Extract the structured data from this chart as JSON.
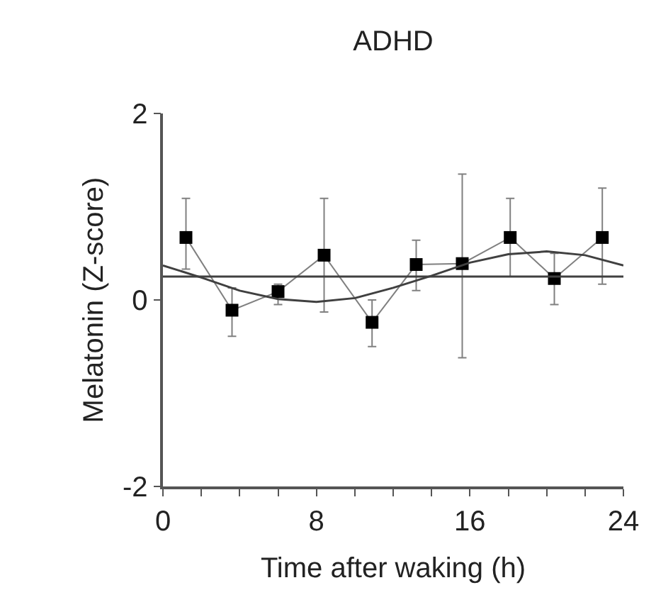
{
  "chart_data": {
    "type": "line",
    "title": "ADHD",
    "xlabel": "Time after waking (h)",
    "ylabel": "Melatonin (Z-score)",
    "xlim": [
      0,
      24
    ],
    "xticks": [
      0,
      {
        "value": 2,
        "label": null
      },
      {
        "value": 4,
        "label": null
      },
      {
        "value": 6,
        "label": null
      },
      8,
      {
        "value": 10,
        "label": null
      },
      {
        "value": 12,
        "label": null
      },
      {
        "value": 14,
        "label": null
      },
      16,
      {
        "value": 18,
        "label": null
      },
      {
        "value": 20,
        "label": null
      },
      {
        "value": 22,
        "label": null
      },
      24
    ],
    "ylim": [
      -2,
      2
    ],
    "yticks": [
      -2,
      0,
      2
    ],
    "series": [
      {
        "color": "#808080",
        "marker": "square",
        "colors": [
          "#000000",
          "#000000",
          "#000000",
          "#000000",
          "#000000",
          "#000000",
          "#000000",
          "#000000",
          "#000000",
          "#000000"
        ],
        "x": [
          1.2,
          3.6,
          6.0,
          8.4,
          10.9,
          13.2,
          15.6,
          18.1,
          20.4,
          22.9
        ],
        "values": [
          0.67,
          -0.11,
          0.09,
          0.48,
          -0.24,
          0.38,
          0.39,
          0.67,
          0.23,
          0.67
        ],
        "errors": [
          [
            0.33,
            1.09
          ],
          [
            -0.39,
            0.13
          ],
          [
            -0.05,
            0.17
          ],
          [
            -0.13,
            1.09
          ],
          [
            -0.5,
            0.0
          ],
          [
            0.1,
            0.64
          ],
          [
            -0.62,
            1.35
          ],
          [
            0.25,
            1.09
          ],
          [
            -0.05,
            0.5
          ],
          [
            0.17,
            1.2
          ]
        ]
      },
      {
        "color": "#404040",
        "marker": "none",
        "x": [
          0,
          2,
          4,
          6,
          8,
          10,
          12,
          14,
          16,
          18,
          20,
          22,
          24
        ],
        "values": [
          0.37,
          0.24,
          0.1,
          0.01,
          -0.02,
          0.02,
          0.13,
          0.26,
          0.4,
          0.49,
          0.52,
          0.48,
          0.37
        ]
      }
    ],
    "ref_lines": [
      {
        "axis": "y",
        "value": 0.25,
        "color": "#404040"
      }
    ]
  }
}
